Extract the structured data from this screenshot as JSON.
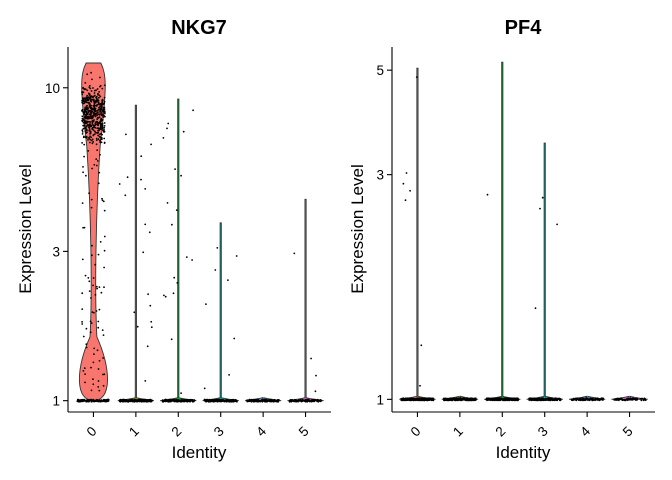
{
  "chart_data": [
    {
      "type": "violin",
      "title": "NKG7",
      "xlabel": "Identity",
      "ylabel": "Expression Level",
      "yscale": "log",
      "categories": [
        "0",
        "1",
        "2",
        "3",
        "4",
        "5"
      ],
      "yticks": [
        1,
        3,
        10
      ],
      "yticklabels": [
        "1",
        "3",
        "10"
      ],
      "ylim": [
        0.92,
        13.5
      ],
      "colors": [
        "#F8766D",
        "#B79F00",
        "#00BA38",
        "#00BFC4",
        "#619CFF",
        "#F564E3"
      ],
      "series": [
        {
          "category": "0",
          "max": 12.0,
          "fraction_expressing": 0.82
        },
        {
          "category": "1",
          "max": 8.8,
          "fraction_expressing": 0.05
        },
        {
          "category": "2",
          "max": 9.2,
          "fraction_expressing": 0.09
        },
        {
          "category": "3",
          "max": 3.7,
          "fraction_expressing": 0.03
        },
        {
          "category": "4",
          "max": 1.0,
          "fraction_expressing": 0.0
        },
        {
          "category": "5",
          "max": 4.4,
          "fraction_expressing": 0.02
        }
      ]
    },
    {
      "type": "violin",
      "title": "PF4",
      "xlabel": "Identity",
      "ylabel": "Expression Level",
      "yscale": "log",
      "categories": [
        "0",
        "1",
        "2",
        "3",
        "4",
        "5"
      ],
      "yticks": [
        1,
        3,
        5
      ],
      "yticklabels": [
        "1",
        "3",
        "5"
      ],
      "ylim": [
        0.94,
        5.6
      ],
      "colors": [
        "#F8766D",
        "#B79F00",
        "#00BA38",
        "#00BFC4",
        "#619CFF",
        "#F564E3"
      ],
      "series": [
        {
          "category": "0",
          "max": 5.05,
          "fraction_expressing": 0.01
        },
        {
          "category": "1",
          "max": 1.0,
          "fraction_expressing": 0.0
        },
        {
          "category": "2",
          "max": 5.2,
          "fraction_expressing": 0.01
        },
        {
          "category": "3",
          "max": 3.5,
          "fraction_expressing": 0.01
        },
        {
          "category": "4",
          "max": 1.0,
          "fraction_expressing": 0.0
        },
        {
          "category": "5",
          "max": 1.0,
          "fraction_expressing": 0.0
        }
      ]
    }
  ]
}
